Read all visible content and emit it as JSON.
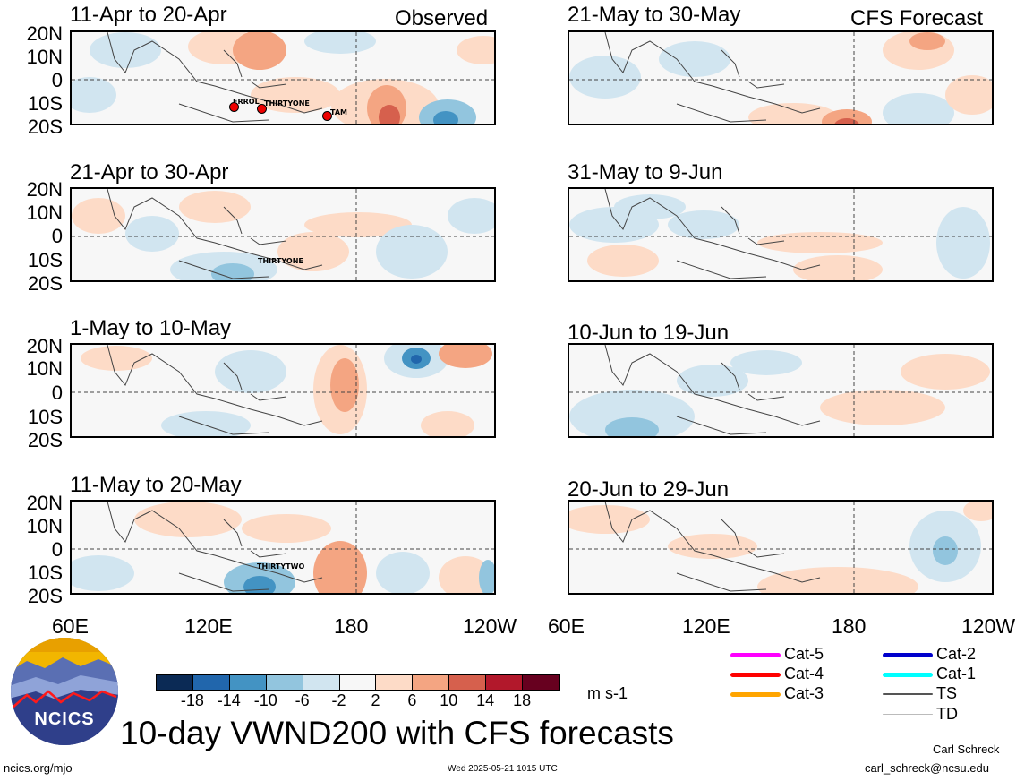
{
  "panels": [
    {
      "title": "11-Apr to 20-Apr",
      "tag": "Observed",
      "storms": [
        "ERROL",
        "THIRTYONE",
        "TAM"
      ]
    },
    {
      "title": "21-Apr to 30-Apr",
      "tag": "",
      "storms": [
        "THIRTYONE"
      ]
    },
    {
      "title": "1-May to 10-May",
      "tag": "",
      "storms": []
    },
    {
      "title": "11-May to 20-May",
      "tag": "",
      "storms": [
        "THIRTYTWO"
      ]
    },
    {
      "title": "21-May to 30-May",
      "tag": "CFS Forecast",
      "storms": []
    },
    {
      "title": "31-May to 9-Jun",
      "tag": "",
      "storms": []
    },
    {
      "title": "10-Jun to 19-Jun",
      "tag": "",
      "storms": []
    },
    {
      "title": "20-Jun to 29-Jun",
      "tag": "",
      "storms": []
    }
  ],
  "lat_labels": [
    "20N",
    "10N",
    "0",
    "10S",
    "20S"
  ],
  "lon_labels": [
    "60E",
    "120E",
    "180",
    "120W"
  ],
  "colorbar": {
    "colors": [
      "#0b2a55",
      "#2166ac",
      "#4393c3",
      "#92c5de",
      "#d1e5f0",
      "#f7f7f7",
      "#fddbc7",
      "#f4a582",
      "#d6604d",
      "#b2182b",
      "#67001f"
    ],
    "ticks": [
      "-18",
      "-14",
      "-10",
      "-6",
      "-2",
      "2",
      "6",
      "10",
      "14",
      "18"
    ],
    "units": "m s-1"
  },
  "legend": [
    {
      "label": "Cat-5",
      "color": "#ff00ff"
    },
    {
      "label": "Cat-4",
      "color": "#ff0000"
    },
    {
      "label": "Cat-3",
      "color": "#ffa500"
    },
    {
      "label": "Cat-2",
      "color": "#0000cc"
    },
    {
      "label": "Cat-1",
      "color": "#00ffff"
    },
    {
      "label": "TS",
      "color": "#555555"
    },
    {
      "label": "TD",
      "color": "#bbbbbb"
    }
  ],
  "logo_text": "NCICS",
  "main_title": "10-day VWND200 with CFS forecasts",
  "footer": {
    "url": "ncics.org/mjo",
    "timestamp": "Wed 2025-05-21 1015 UTC",
    "author": "Carl Schreck",
    "email": "carl_schreck@ncsu.edu"
  }
}
